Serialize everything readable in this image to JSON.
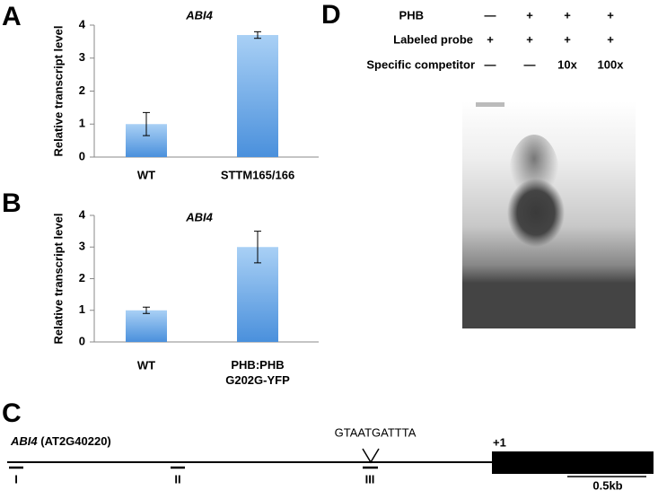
{
  "panel_labels": [
    "A",
    "B",
    "C",
    "D"
  ],
  "chart_data": [
    {
      "type": "bar",
      "title": "ABI4",
      "y_label": "Relative transcript level",
      "categories": [
        "WT",
        "STTM165/166"
      ],
      "values": [
        1.0,
        3.7
      ],
      "errors": [
        0.35,
        0.1
      ],
      "color": "#5fa3e4",
      "ylim": [
        0,
        4
      ],
      "yticks": [
        0,
        1,
        2,
        3,
        4
      ]
    },
    {
      "type": "bar",
      "title": "ABI4",
      "y_label": "Relative transcript level",
      "categories": [
        "WT",
        "PHB:PHB G202G-YFP"
      ],
      "values": [
        1.0,
        3.0
      ],
      "errors": [
        0.1,
        0.5
      ],
      "color": "#5fa3e4",
      "ylim": [
        0,
        4
      ],
      "yticks": [
        0,
        1,
        2,
        3,
        4
      ]
    }
  ],
  "gene_diagram": {
    "gene": "ABI4",
    "locus": "(AT2G40220)",
    "motif": "GTAATGATTTA",
    "tss": "+1",
    "sites": [
      "I",
      "II",
      "III"
    ],
    "scale": "0.5kb"
  },
  "gel": {
    "rows": [
      {
        "label": "PHB",
        "lanes": [
          "—",
          "+",
          "+",
          "+"
        ]
      },
      {
        "label": "Labeled probe",
        "lanes": [
          "+",
          "+",
          "+",
          "+"
        ]
      },
      {
        "label": "Specific competitor",
        "lanes": [
          "—",
          "—",
          "10x",
          "100x"
        ]
      }
    ]
  }
}
